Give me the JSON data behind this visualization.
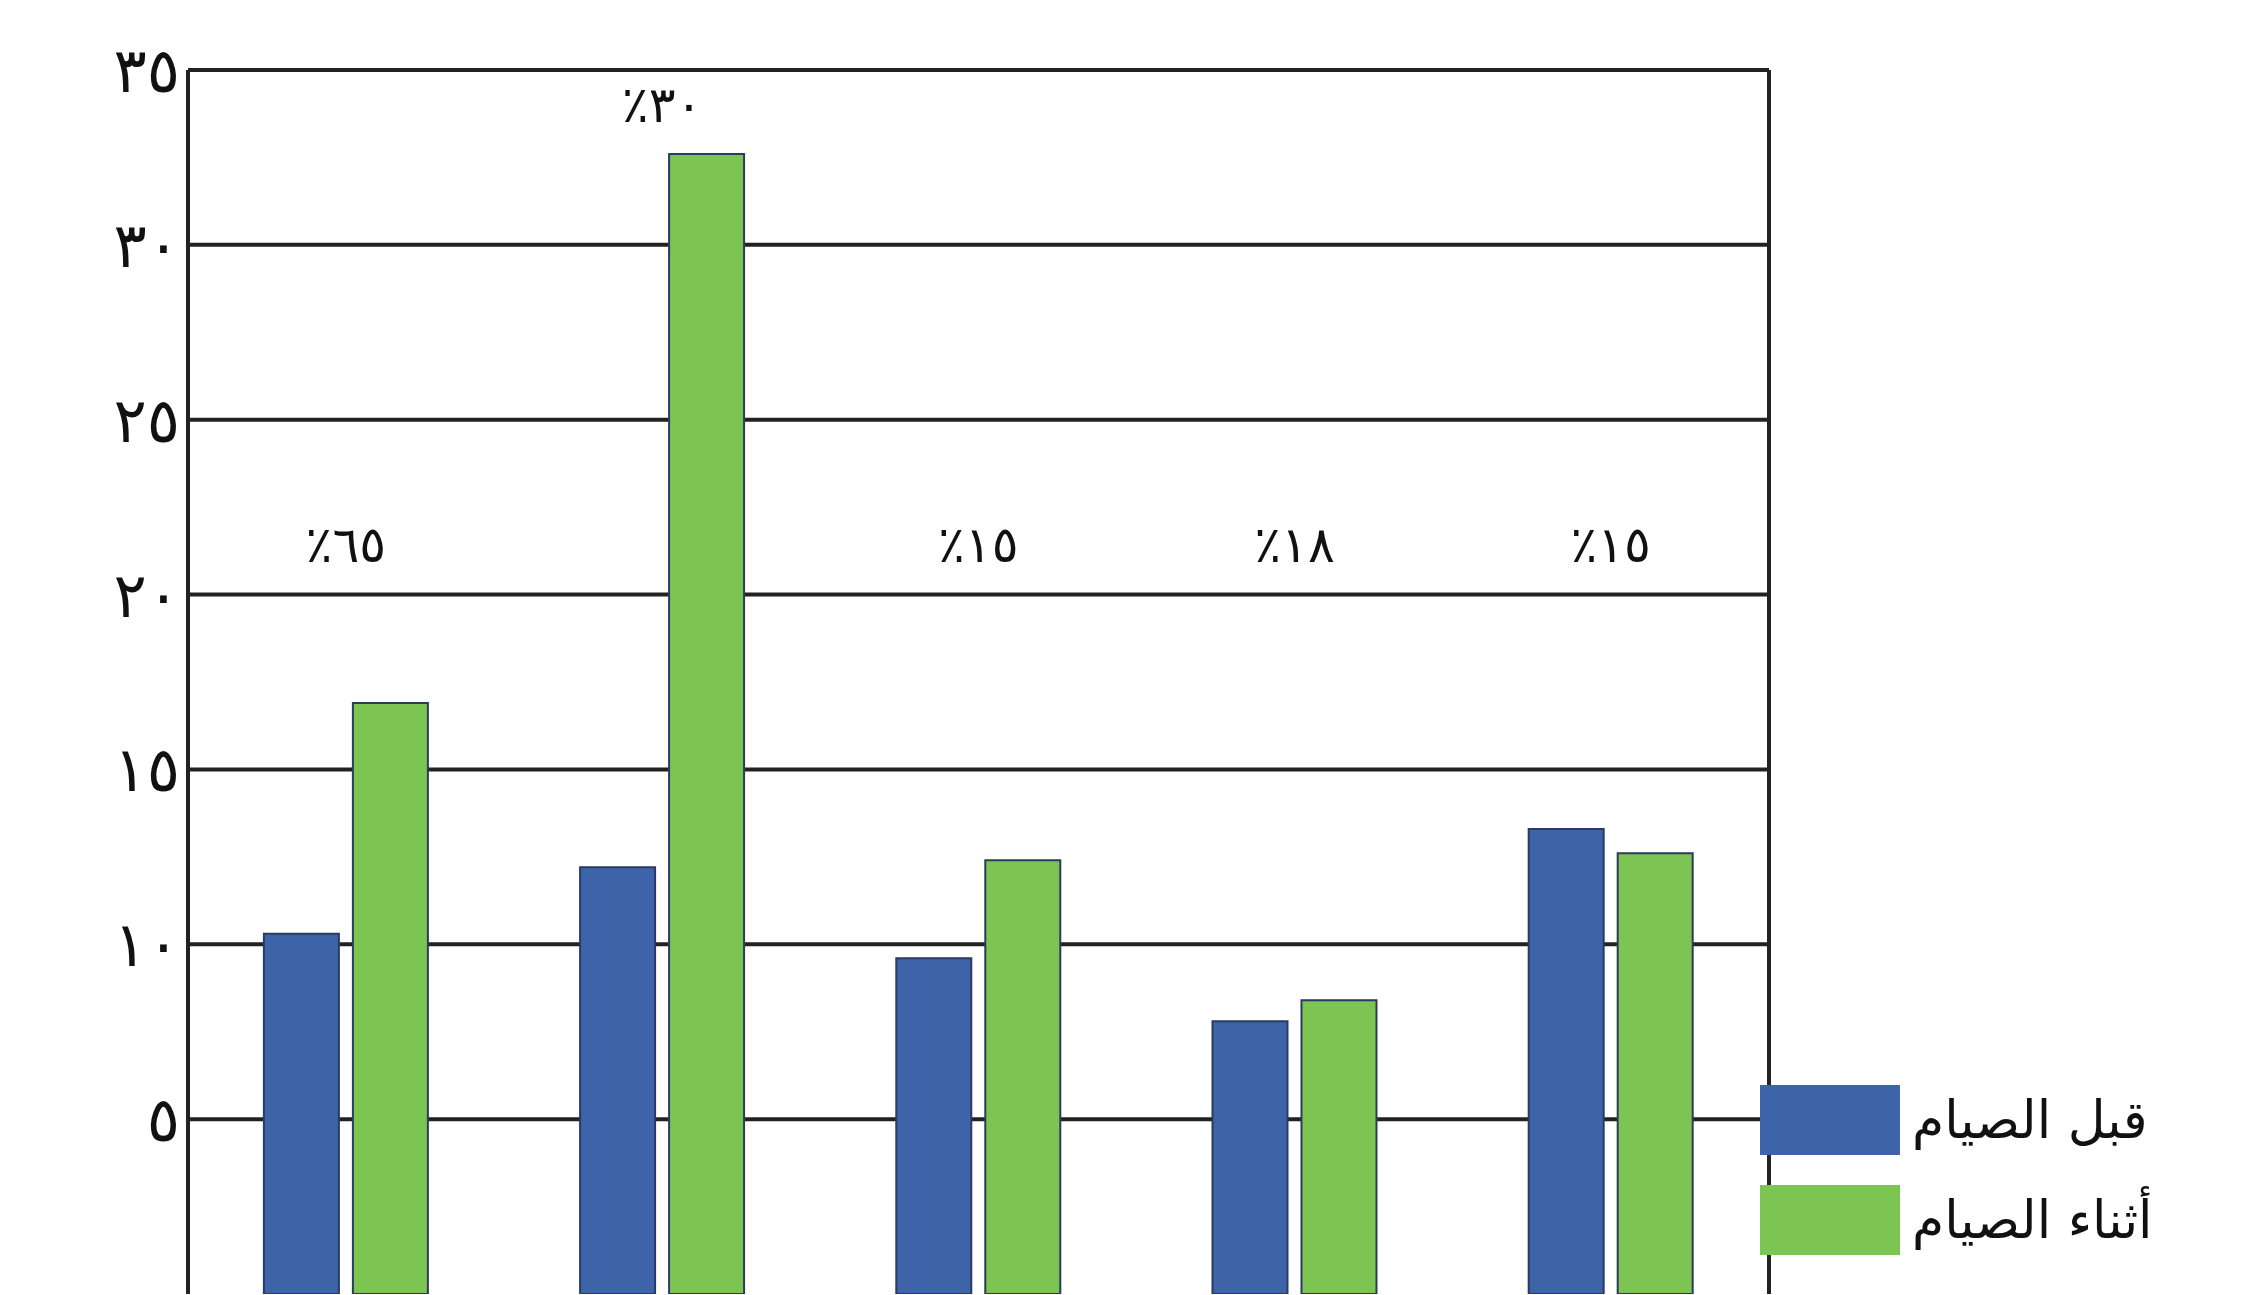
{
  "chart_data": {
    "type": "bar",
    "categories": [
      null,
      null,
      null,
      null,
      null
    ],
    "series": [
      {
        "name": "قبل الصيام",
        "color": "#3d64a8",
        "values": [
          10.3,
          12.2,
          9.6,
          7.8,
          13.3
        ]
      },
      {
        "name": "أثناء الصيام",
        "color": "#7cc552",
        "values": [
          16.9,
          32.6,
          12.4,
          8.4,
          12.6
        ]
      }
    ],
    "ylim": [
      0,
      35
    ],
    "yticks": [
      {
        "value": 5,
        "label": "٥"
      },
      {
        "value": 10,
        "label": "١٠"
      },
      {
        "value": 15,
        "label": "١٥"
      },
      {
        "value": 20,
        "label": "٢٠"
      },
      {
        "value": 25,
        "label": "٢٥"
      },
      {
        "value": 30,
        "label": "٣٠"
      },
      {
        "value": 35,
        "label": "٣٥"
      }
    ],
    "annotations": [
      "٪٦٥",
      "٪٣٠",
      "٪١٥",
      "٪١٨",
      "٪١٥"
    ],
    "grid": "y",
    "legend": "bottom right",
    "tick_labels": "y"
  }
}
